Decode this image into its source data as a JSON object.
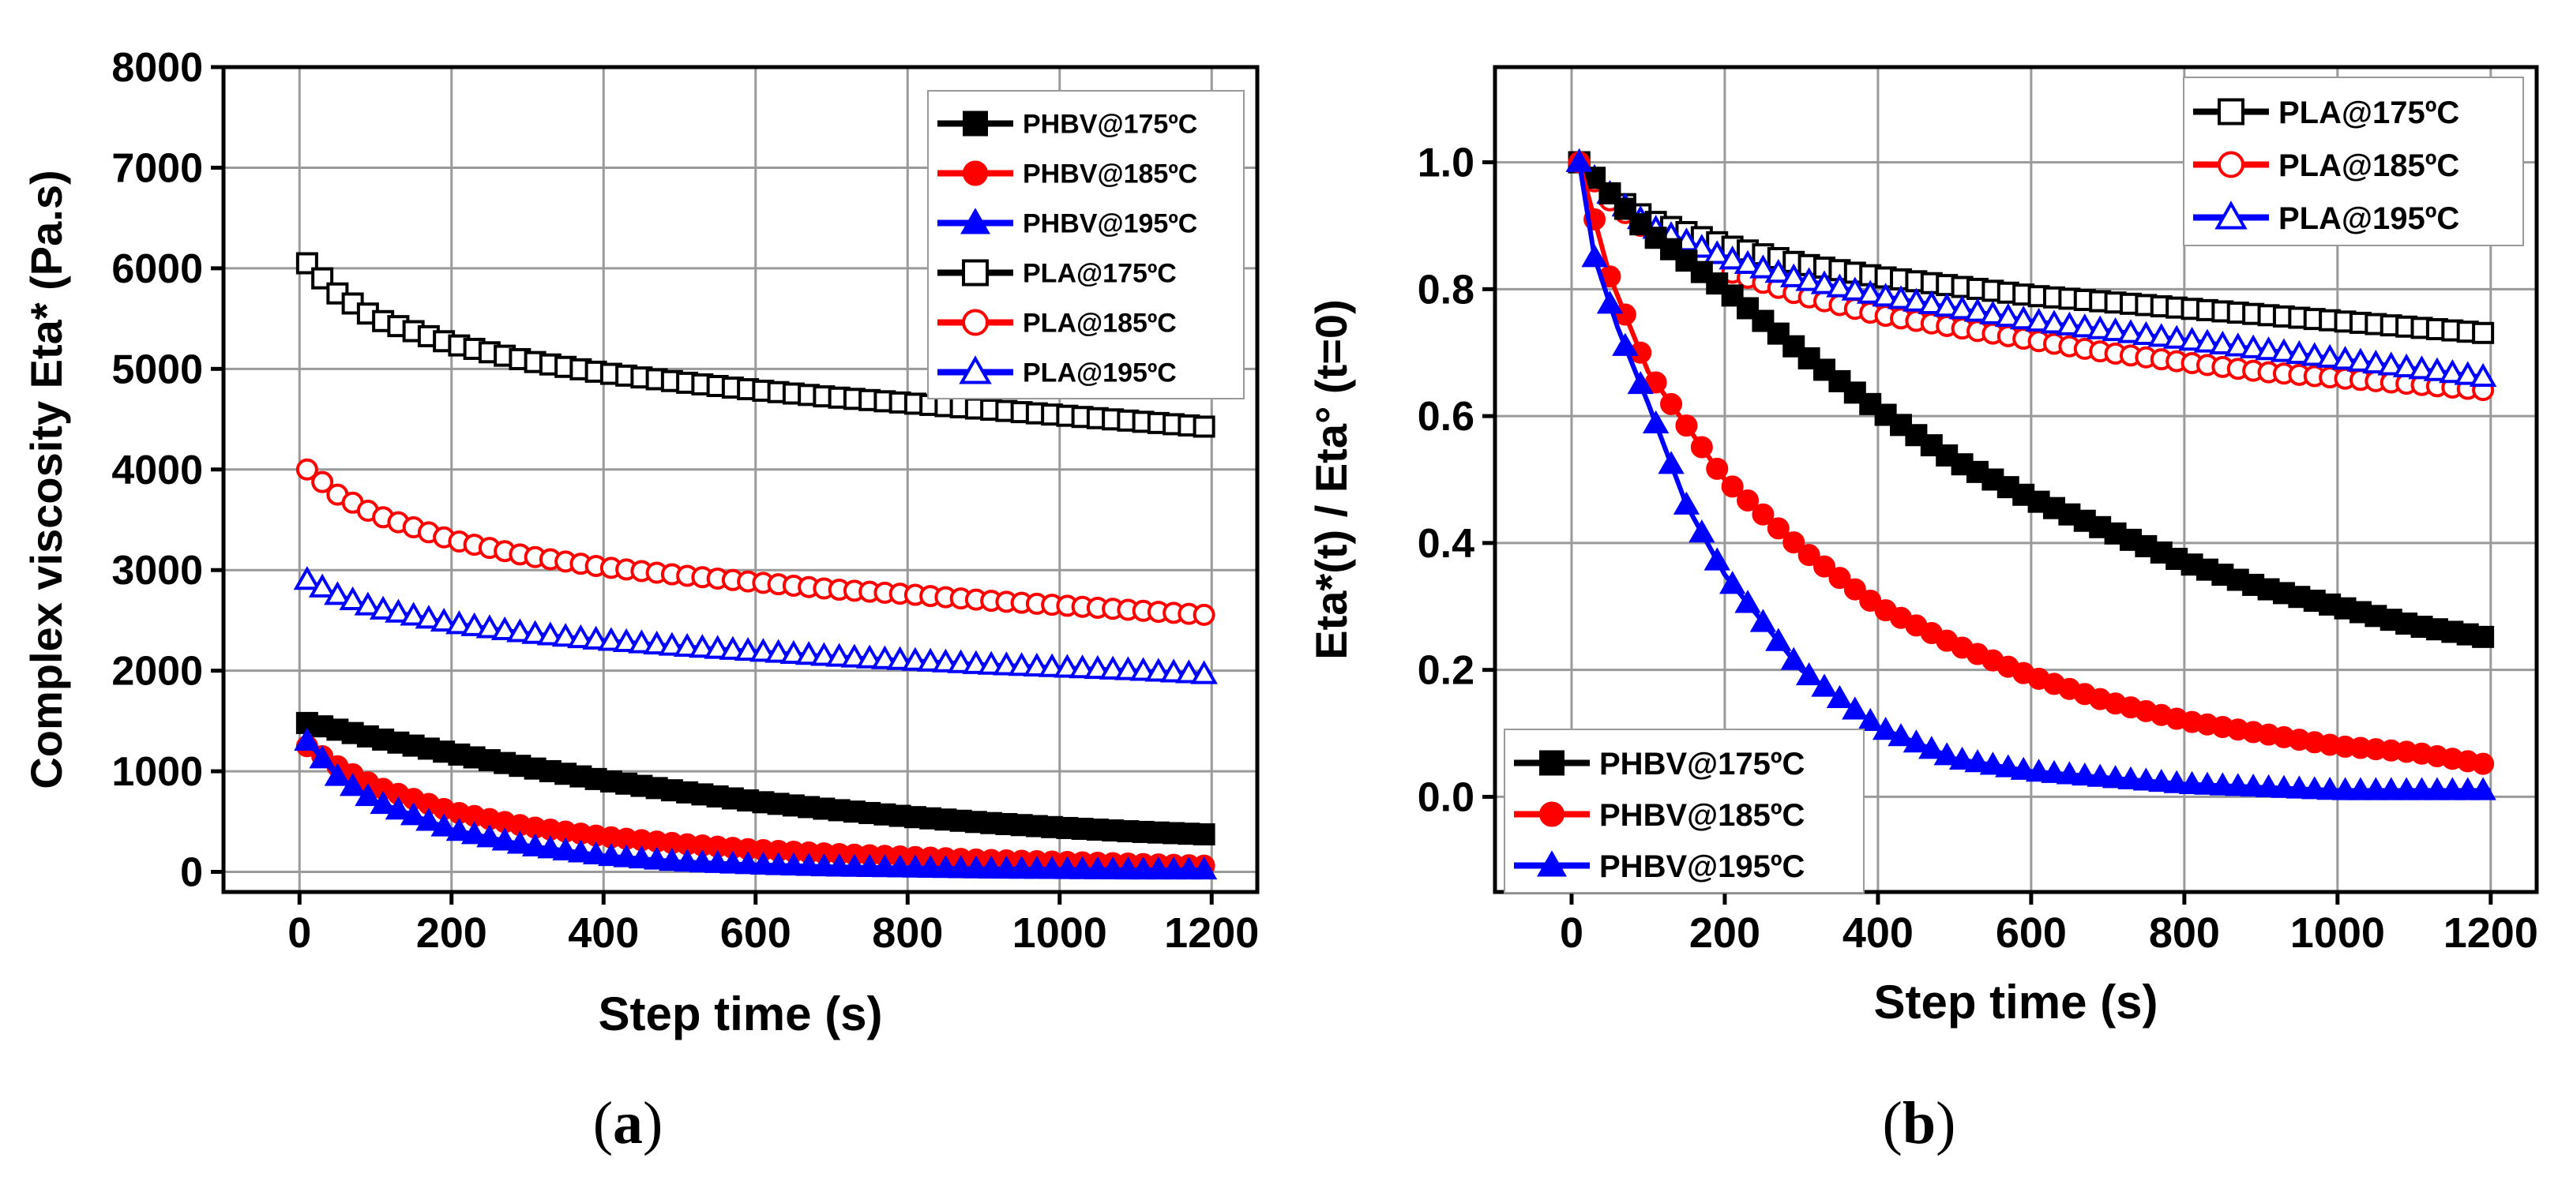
{
  "figure": {
    "panels": [
      {
        "label_open": "(",
        "label_letter": "a",
        "label_close": ")",
        "ylabel": "Complex viscosity Eta* (Pa.s)",
        "xlabel": "Step time (s)"
      },
      {
        "label_open": "(",
        "label_letter": "b",
        "label_close": ")",
        "ylabel": "Eta*(t) / Eta° (t=0)",
        "xlabel": "Step time (s)"
      }
    ]
  },
  "chart_data": [
    {
      "type": "line",
      "title": "",
      "xlabel": "Step time (s)",
      "ylabel": "Complex viscosity Eta* (Pa.s)",
      "xlim": [
        -100,
        1260
      ],
      "ylim": [
        -200,
        8000
      ],
      "xticks": [
        0,
        200,
        400,
        600,
        800,
        1000,
        1200
      ],
      "yticks": [
        0,
        1000,
        2000,
        3000,
        4000,
        5000,
        6000,
        7000,
        8000
      ],
      "grid": true,
      "legend_position": "top-right",
      "series": [
        {
          "name": "PHBV@175ºC",
          "color": "#000000",
          "marker": "square",
          "filled": true,
          "x": [
            10,
            100,
            200,
            300,
            400,
            500,
            600,
            700,
            800,
            900,
            1000,
            1100,
            1200
          ],
          "y": [
            1480,
            1330,
            1180,
            1040,
            910,
            800,
            700,
            620,
            550,
            490,
            440,
            400,
            370
          ]
        },
        {
          "name": "PHBV@185ºC",
          "color": "#ff0000",
          "marker": "circle",
          "filled": true,
          "x": [
            10,
            50,
            100,
            200,
            300,
            400,
            500,
            600,
            700,
            800,
            900,
            1000,
            1100,
            1200
          ],
          "y": [
            1250,
            1050,
            850,
            600,
            450,
            350,
            280,
            220,
            180,
            150,
            120,
            100,
            80,
            60
          ]
        },
        {
          "name": "PHBV@195ºC",
          "color": "#0000ff",
          "marker": "triangle",
          "filled": true,
          "x": [
            10,
            50,
            100,
            200,
            300,
            400,
            500,
            600,
            700,
            800,
            900,
            1000,
            1100,
            1200
          ],
          "y": [
            1300,
            950,
            700,
            420,
            260,
            160,
            100,
            70,
            50,
            40,
            30,
            25,
            20,
            20
          ]
        },
        {
          "name": "PLA@175ºC",
          "color": "#000000",
          "marker": "square",
          "filled": false,
          "x": [
            10,
            50,
            100,
            200,
            300,
            400,
            500,
            600,
            700,
            800,
            900,
            1000,
            1100,
            1200
          ],
          "y": [
            6050,
            5750,
            5500,
            5250,
            5080,
            4960,
            4870,
            4790,
            4720,
            4660,
            4600,
            4540,
            4480,
            4420
          ]
        },
        {
          "name": "PLA@185ºC",
          "color": "#ff0000",
          "marker": "circle",
          "filled": false,
          "x": [
            10,
            50,
            100,
            200,
            300,
            400,
            500,
            600,
            700,
            800,
            900,
            1000,
            1100,
            1200
          ],
          "y": [
            4000,
            3750,
            3550,
            3300,
            3140,
            3030,
            2950,
            2880,
            2810,
            2760,
            2700,
            2650,
            2600,
            2550
          ]
        },
        {
          "name": "PLA@195ºC",
          "color": "#0000ff",
          "marker": "triangle",
          "filled": false,
          "x": [
            10,
            50,
            100,
            200,
            300,
            400,
            500,
            600,
            700,
            800,
            900,
            1000,
            1100,
            1200
          ],
          "y": [
            2900,
            2750,
            2620,
            2470,
            2370,
            2300,
            2240,
            2190,
            2140,
            2100,
            2060,
            2030,
            2000,
            1960
          ]
        }
      ]
    },
    {
      "type": "line",
      "title": "",
      "xlabel": "Step time (s)",
      "ylabel": "Eta*(t) / Eta° (t=0)",
      "xlim": [
        -100,
        1260
      ],
      "ylim": [
        -0.15,
        1.15
      ],
      "xticks": [
        0,
        200,
        400,
        600,
        800,
        1000,
        1200
      ],
      "yticks": [
        0.0,
        0.2,
        0.4,
        0.6,
        0.8,
        1.0
      ],
      "grid": true,
      "legend_position": "top-right / bottom-left",
      "series": [
        {
          "name": "PLA@175ºC",
          "color": "#000000",
          "marker": "square",
          "filled": false,
          "x": [
            10,
            50,
            100,
            200,
            300,
            400,
            500,
            600,
            700,
            800,
            900,
            1000,
            1100,
            1200
          ],
          "y": [
            1.0,
            0.95,
            0.91,
            0.87,
            0.84,
            0.82,
            0.805,
            0.79,
            0.78,
            0.77,
            0.76,
            0.75,
            0.74,
            0.73
          ]
        },
        {
          "name": "PLA@185ºC",
          "color": "#ff0000",
          "marker": "circle",
          "filled": false,
          "x": [
            10,
            50,
            100,
            200,
            300,
            400,
            500,
            600,
            700,
            800,
            900,
            1000,
            1100,
            1200
          ],
          "y": [
            1.0,
            0.94,
            0.89,
            0.83,
            0.79,
            0.76,
            0.74,
            0.72,
            0.7,
            0.685,
            0.67,
            0.66,
            0.65,
            0.64
          ]
        },
        {
          "name": "PLA@195ºC",
          "color": "#0000ff",
          "marker": "triangle",
          "filled": false,
          "x": [
            10,
            50,
            100,
            200,
            300,
            400,
            500,
            600,
            700,
            800,
            900,
            1000,
            1100,
            1200
          ],
          "y": [
            1.0,
            0.95,
            0.9,
            0.85,
            0.815,
            0.79,
            0.77,
            0.75,
            0.735,
            0.72,
            0.705,
            0.69,
            0.675,
            0.66
          ]
        },
        {
          "name": "PHBV@175ºC",
          "color": "#000000",
          "marker": "square",
          "filled": true,
          "x": [
            10,
            100,
            200,
            300,
            400,
            500,
            600,
            700,
            800,
            900,
            1000,
            1100,
            1200
          ],
          "y": [
            1.0,
            0.89,
            0.8,
            0.7,
            0.61,
            0.53,
            0.47,
            0.42,
            0.37,
            0.33,
            0.3,
            0.27,
            0.25
          ]
        },
        {
          "name": "PHBV@185ºC",
          "color": "#ff0000",
          "marker": "circle",
          "filled": true,
          "x": [
            10,
            50,
            100,
            200,
            300,
            400,
            500,
            600,
            700,
            800,
            900,
            1000,
            1100,
            1200
          ],
          "y": [
            1.0,
            0.82,
            0.67,
            0.5,
            0.39,
            0.3,
            0.24,
            0.19,
            0.15,
            0.12,
            0.1,
            0.08,
            0.07,
            0.05
          ]
        },
        {
          "name": "PHBV@195ºC",
          "color": "#0000ff",
          "marker": "triangle",
          "filled": true,
          "x": [
            10,
            30,
            60,
            100,
            150,
            200,
            300,
            400,
            500,
            600,
            700,
            800,
            900,
            1000,
            1100,
            1200
          ],
          "y": [
            1.0,
            0.85,
            0.74,
            0.62,
            0.46,
            0.35,
            0.2,
            0.11,
            0.06,
            0.04,
            0.03,
            0.02,
            0.015,
            0.01,
            0.01,
            0.01
          ]
        }
      ]
    }
  ]
}
